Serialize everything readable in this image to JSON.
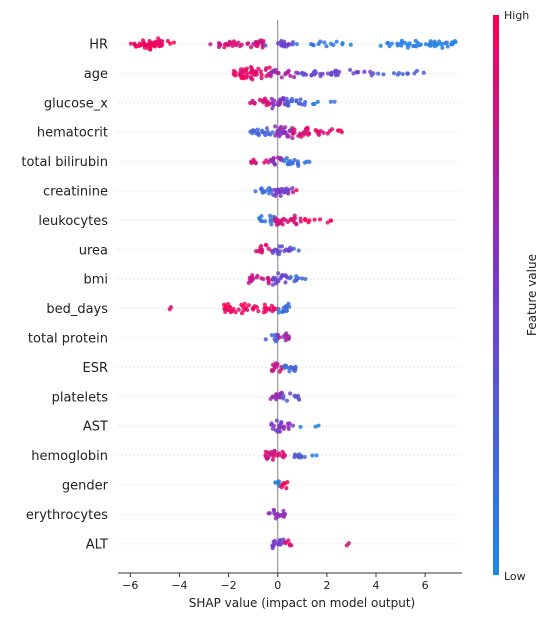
{
  "chart_data": {
    "type": "scatter",
    "subtype": "shap-beeswarm",
    "xlabel": "SHAP value (impact on model output)",
    "xlim": [
      -6.5,
      7.5
    ],
    "xticks": [
      "−6",
      "−4",
      "−2",
      "0",
      "2",
      "4",
      "6"
    ],
    "xtick_values": [
      -6,
      -4,
      -2,
      0,
      2,
      4,
      6
    ],
    "grid": false,
    "colorbar": {
      "title": "Feature value",
      "high_label": "High",
      "low_label": "Low",
      "low_color": "#1e88e5",
      "high_color": "#e0175f"
    },
    "features": [
      {
        "name": "HR",
        "bands": [
          {
            "min": -5.5,
            "max": -4.7,
            "density": 1.0,
            "color": 0.98
          },
          {
            "min": -6.0,
            "max": -4.2,
            "density": 0.35,
            "color": 0.95
          },
          {
            "min": -2.8,
            "max": -0.5,
            "density": 0.45,
            "color": 0.85
          },
          {
            "min": -0.5,
            "max": 0.7,
            "density": 0.35,
            "color": 0.45
          },
          {
            "min": 0.7,
            "max": 3.0,
            "density": 0.15,
            "color": 0.1
          },
          {
            "min": 4.0,
            "max": 7.4,
            "density": 0.35,
            "color": 0.03
          }
        ]
      },
      {
        "name": "age",
        "bands": [
          {
            "min": -1.8,
            "max": -0.3,
            "density": 0.9,
            "color": 0.9
          },
          {
            "min": -0.3,
            "max": 0.8,
            "density": 0.45,
            "color": 0.7
          },
          {
            "min": 0.8,
            "max": 4.0,
            "density": 0.3,
            "color": 0.45
          },
          {
            "min": 4.0,
            "max": 6.1,
            "density": 0.15,
            "color": 0.25
          }
        ]
      },
      {
        "name": "glucose_x",
        "bands": [
          {
            "min": -1.2,
            "max": -0.3,
            "density": 0.45,
            "color": 0.85
          },
          {
            "min": -0.3,
            "max": 0.3,
            "density": 0.8,
            "color": 0.6
          },
          {
            "min": 0.3,
            "max": 1.2,
            "density": 0.55,
            "color": 0.25
          },
          {
            "min": 1.2,
            "max": 2.4,
            "density": 0.1,
            "color": 0.1
          }
        ]
      },
      {
        "name": "hematocrit",
        "bands": [
          {
            "min": -1.2,
            "max": -0.2,
            "density": 0.55,
            "color": 0.2
          },
          {
            "min": -0.2,
            "max": 0.6,
            "density": 0.85,
            "color": 0.6
          },
          {
            "min": 0.6,
            "max": 1.9,
            "density": 0.55,
            "color": 0.9
          },
          {
            "min": 1.9,
            "max": 2.8,
            "density": 0.2,
            "color": 0.95
          }
        ]
      },
      {
        "name": "total bilirubin",
        "bands": [
          {
            "min": -1.1,
            "max": -0.3,
            "density": 0.3,
            "color": 0.85
          },
          {
            "min": -0.3,
            "max": 0.2,
            "density": 0.7,
            "color": 0.65
          },
          {
            "min": 0.2,
            "max": 0.9,
            "density": 0.55,
            "color": 0.15
          },
          {
            "min": 0.9,
            "max": 1.4,
            "density": 0.15,
            "color": 0.1
          }
        ]
      },
      {
        "name": "creatinine",
        "bands": [
          {
            "min": -1.0,
            "max": -0.2,
            "density": 0.4,
            "color": 0.15
          },
          {
            "min": -0.2,
            "max": 0.6,
            "density": 0.7,
            "color": 0.5
          },
          {
            "min": 0.6,
            "max": 1.1,
            "density": 0.08,
            "color": 0.85
          }
        ]
      },
      {
        "name": "leukocytes",
        "bands": [
          {
            "min": -0.8,
            "max": -0.1,
            "density": 0.5,
            "color": 0.15
          },
          {
            "min": -0.1,
            "max": 1.0,
            "density": 0.65,
            "color": 0.85
          },
          {
            "min": 1.0,
            "max": 2.2,
            "density": 0.2,
            "color": 0.95
          }
        ]
      },
      {
        "name": "urea",
        "bands": [
          {
            "min": -0.9,
            "max": -0.2,
            "density": 0.5,
            "color": 0.85
          },
          {
            "min": -0.2,
            "max": 0.6,
            "density": 0.6,
            "color": 0.4
          },
          {
            "min": 0.6,
            "max": 0.9,
            "density": 0.12,
            "color": 0.2
          }
        ]
      },
      {
        "name": "bmi",
        "bands": [
          {
            "min": -1.2,
            "max": -0.2,
            "density": 0.55,
            "color": 0.8
          },
          {
            "min": -0.2,
            "max": 0.4,
            "density": 0.75,
            "color": 0.45
          },
          {
            "min": 0.4,
            "max": 1.2,
            "density": 0.3,
            "color": 0.2
          }
        ]
      },
      {
        "name": "bed_days",
        "bands": [
          {
            "min": -4.4,
            "max": -4.3,
            "density": 0.05,
            "color": 0.85
          },
          {
            "min": -2.2,
            "max": -0.4,
            "density": 0.55,
            "color": 0.97
          },
          {
            "min": -0.4,
            "max": 0.0,
            "density": 0.45,
            "color": 0.9
          },
          {
            "min": 0.0,
            "max": 0.5,
            "density": 0.75,
            "color": 0.15
          }
        ]
      },
      {
        "name": "total protein",
        "bands": [
          {
            "min": -0.5,
            "max": 0.0,
            "density": 0.35,
            "color": 0.25
          },
          {
            "min": 0.0,
            "max": 0.5,
            "density": 0.6,
            "color": 0.65
          }
        ]
      },
      {
        "name": "ESR",
        "bands": [
          {
            "min": -0.3,
            "max": 0.2,
            "density": 0.65,
            "color": 0.8
          },
          {
            "min": 0.2,
            "max": 1.0,
            "density": 0.45,
            "color": 0.25
          }
        ]
      },
      {
        "name": "platelets",
        "bands": [
          {
            "min": -0.3,
            "max": 0.2,
            "density": 0.7,
            "color": 0.65
          },
          {
            "min": 0.2,
            "max": 0.9,
            "density": 0.35,
            "color": 0.35
          }
        ]
      },
      {
        "name": "AST",
        "bands": [
          {
            "min": -0.3,
            "max": 0.2,
            "density": 0.75,
            "color": 0.55
          },
          {
            "min": 0.2,
            "max": 0.8,
            "density": 0.3,
            "color": 0.6
          },
          {
            "min": 0.8,
            "max": 1.7,
            "density": 0.08,
            "color": 0.05
          }
        ]
      },
      {
        "name": "hemoglobin",
        "bands": [
          {
            "min": -0.5,
            "max": 0.3,
            "density": 0.8,
            "color": 0.85
          },
          {
            "min": 0.3,
            "max": 1.1,
            "density": 0.3,
            "color": 0.3
          },
          {
            "min": 1.1,
            "max": 1.6,
            "density": 0.08,
            "color": 0.05
          }
        ]
      },
      {
        "name": "gender",
        "bands": [
          {
            "min": -0.15,
            "max": 0.15,
            "density": 0.55,
            "color": 0.05
          },
          {
            "min": 0.15,
            "max": 0.5,
            "density": 0.5,
            "color": 0.95
          }
        ]
      },
      {
        "name": "erythrocytes",
        "bands": [
          {
            "min": -0.4,
            "max": 0.3,
            "density": 0.6,
            "color": 0.6
          }
        ]
      },
      {
        "name": "ALT",
        "bands": [
          {
            "min": -0.3,
            "max": 0.3,
            "density": 0.65,
            "color": 0.5
          },
          {
            "min": 0.3,
            "max": 0.9,
            "density": 0.25,
            "color": 0.85
          },
          {
            "min": 2.8,
            "max": 2.9,
            "density": 0.05,
            "color": 0.8
          }
        ]
      }
    ]
  }
}
